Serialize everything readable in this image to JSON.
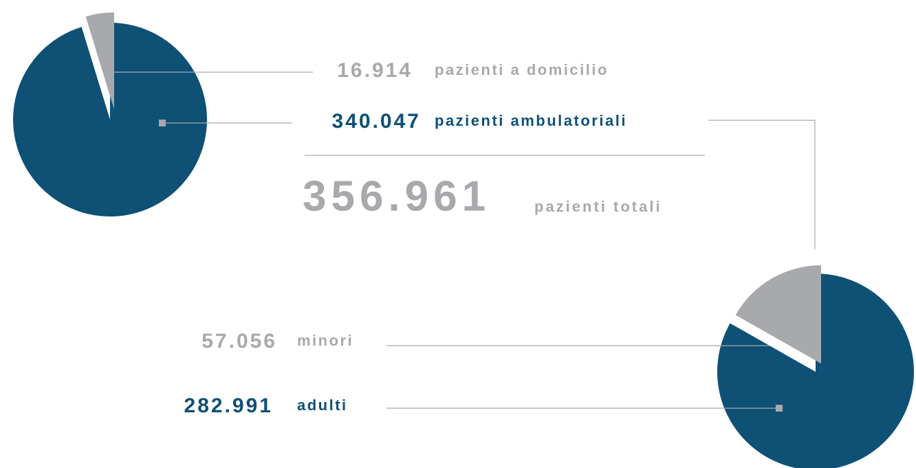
{
  "chart_data": [
    {
      "type": "pie",
      "categories": [
        "pazienti a domicilio",
        "pazienti ambulatoriali"
      ],
      "values": [
        16914,
        340047
      ],
      "value_labels": [
        "16.914",
        "340.047"
      ],
      "colors": [
        "#a7a9ac",
        "#0f5075"
      ],
      "total_label": "356.961",
      "total_caption": "pazienti totali"
    },
    {
      "type": "pie",
      "categories": [
        "minori",
        "adulti"
      ],
      "values": [
        57056,
        282991
      ],
      "value_labels": [
        "57.056",
        "282.991"
      ],
      "colors": [
        "#a7a9ac",
        "#0f5075"
      ]
    }
  ]
}
